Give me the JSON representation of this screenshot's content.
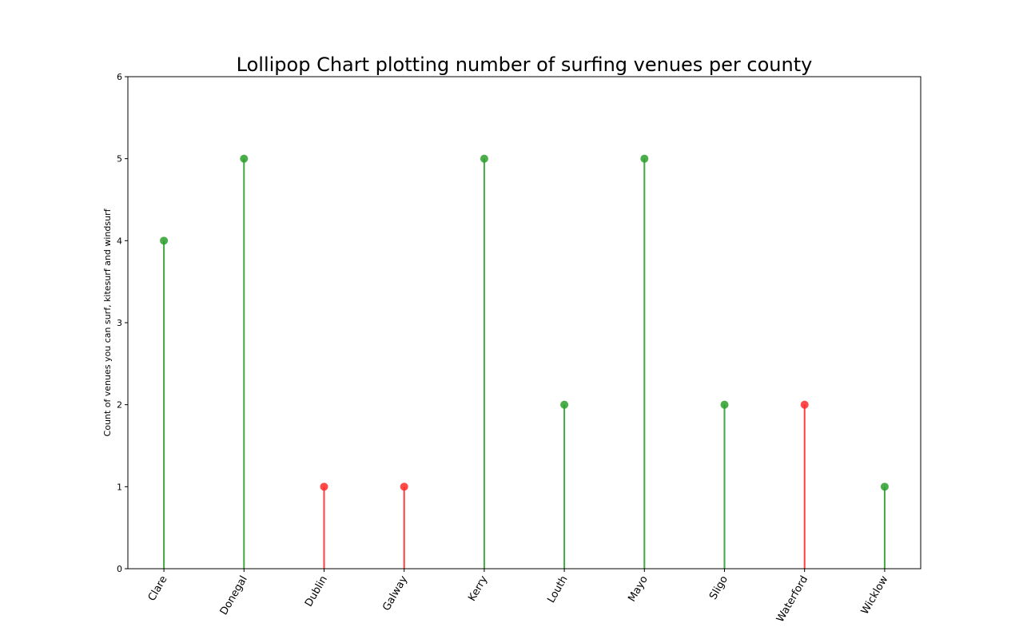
{
  "chart_data": {
    "type": "lollipop",
    "title": "Lollipop Chart plotting number of surfing venues per county",
    "ylabel": "Count of venues you can surf, kitesurf and windsurf",
    "xlabel": "",
    "categories": [
      "Clare",
      "Donegal",
      "Dublin",
      "Galway",
      "Kerry",
      "Louth",
      "Mayo",
      "Sligo",
      "Waterford",
      "Wicklow"
    ],
    "values": [
      4,
      5,
      1,
      1,
      5,
      2,
      5,
      2,
      2,
      1
    ],
    "colors": [
      "#2ca02c",
      "#2ca02c",
      "#ff2a2a",
      "#ff2a2a",
      "#2ca02c",
      "#2ca02c",
      "#2ca02c",
      "#2ca02c",
      "#ff2a2a",
      "#2ca02c"
    ],
    "ylim": [
      0,
      6
    ],
    "yticks": [
      0,
      1,
      2,
      3,
      4,
      5,
      6
    ],
    "grid": false
  }
}
